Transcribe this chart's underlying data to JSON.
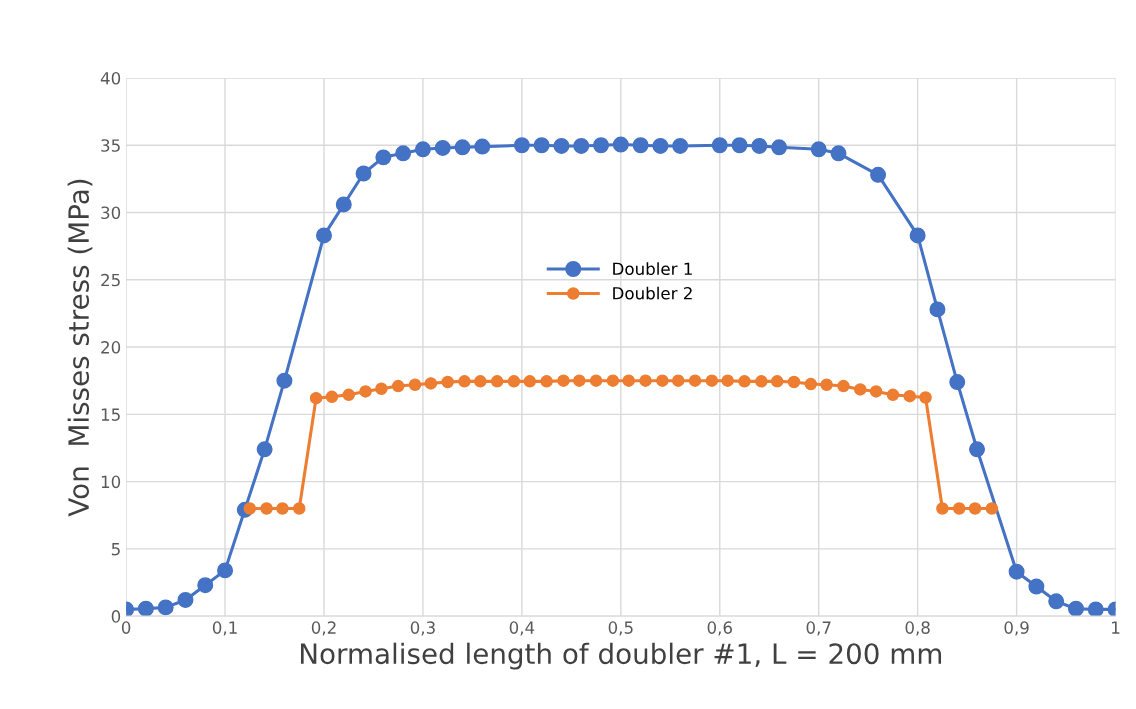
{
  "chart_data": {
    "type": "line",
    "xlabel": "Normalised length of doubler #1, L = 200 mm",
    "ylabel": "Von  Misses stress (MPa)",
    "xlim": [
      0,
      1
    ],
    "ylim": [
      0,
      40
    ],
    "xticks": [
      0,
      {
        "value": 0.1,
        "label": "0,1"
      },
      {
        "value": 0.2,
        "label": "0,2"
      },
      {
        "value": 0.3,
        "label": "0,3"
      },
      {
        "value": 0.4,
        "label": "0,4"
      },
      {
        "value": 0.5,
        "label": "0,5"
      },
      {
        "value": 0.6,
        "label": "0,6"
      },
      {
        "value": 0.7,
        "label": "0,7"
      },
      {
        "value": 0.8,
        "label": "0,8"
      },
      {
        "value": 0.9,
        "label": "0,9"
      },
      1
    ],
    "yticks": [
      0,
      5,
      10,
      15,
      20,
      25,
      30,
      35,
      40
    ],
    "grid": true,
    "legend": "center",
    "marker": "circle",
    "line_style": "solid",
    "series": [
      {
        "name": "Doubler 1",
        "color": "#4472c4",
        "x": [
          0,
          0.02,
          0.04,
          0.06,
          0.08,
          0.1,
          0.12,
          0.14,
          0.16,
          0.2,
          0.22,
          0.24,
          0.26,
          0.28,
          0.3,
          0.32,
          0.34,
          0.36,
          0.4,
          0.42,
          0.44,
          0.46,
          0.48,
          0.5,
          0.52,
          0.54,
          0.56,
          0.6,
          0.62,
          0.64,
          0.66,
          0.7,
          0.72,
          0.76,
          0.8,
          0.82,
          0.84,
          0.86,
          0.9,
          0.92,
          0.94,
          0.96,
          0.98,
          1
        ],
        "values": [
          0.5,
          0.55,
          0.65,
          1.2,
          2.3,
          3.4,
          7.9,
          12.4,
          17.5,
          28.3,
          30.6,
          32.9,
          34.1,
          34.4,
          34.7,
          34.8,
          34.85,
          34.9,
          35.0,
          35.0,
          34.95,
          34.95,
          35.0,
          35.05,
          35.0,
          34.95,
          34.95,
          35.0,
          35.0,
          34.95,
          34.85,
          34.7,
          34.4,
          32.8,
          28.3,
          22.8,
          17.4,
          12.4,
          3.3,
          2.2,
          1.1,
          0.55,
          0.5,
          0.5
        ]
      },
      {
        "name": "Doubler 2",
        "color": "#ed7d31",
        "x": [
          0.125,
          0.142,
          0.158,
          0.175,
          0.192,
          0.208,
          0.225,
          0.242,
          0.258,
          0.275,
          0.292,
          0.308,
          0.325,
          0.342,
          0.358,
          0.375,
          0.392,
          0.408,
          0.425,
          0.442,
          0.458,
          0.475,
          0.492,
          0.508,
          0.525,
          0.542,
          0.558,
          0.575,
          0.592,
          0.608,
          0.625,
          0.642,
          0.658,
          0.675,
          0.692,
          0.708,
          0.725,
          0.742,
          0.758,
          0.775,
          0.792,
          0.808,
          0.825,
          0.842,
          0.858,
          0.875
        ],
        "values": [
          8,
          8,
          8,
          8,
          16.2,
          16.3,
          16.45,
          16.7,
          16.9,
          17.1,
          17.2,
          17.3,
          17.4,
          17.45,
          17.45,
          17.45,
          17.45,
          17.45,
          17.45,
          17.5,
          17.5,
          17.5,
          17.5,
          17.5,
          17.5,
          17.5,
          17.5,
          17.5,
          17.5,
          17.5,
          17.45,
          17.45,
          17.45,
          17.4,
          17.25,
          17.2,
          17.1,
          16.85,
          16.7,
          16.45,
          16.35,
          16.25,
          8,
          8,
          8,
          8
        ]
      }
    ]
  }
}
